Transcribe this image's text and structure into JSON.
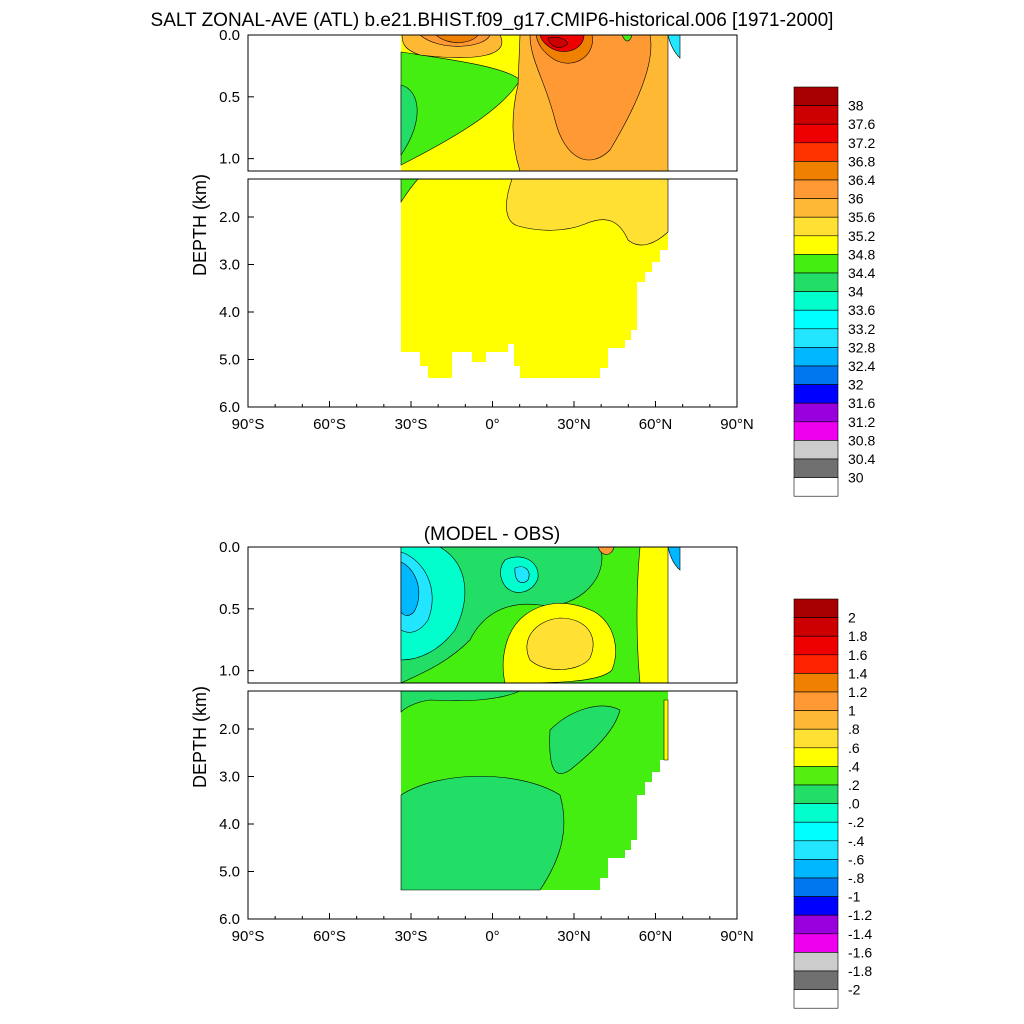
{
  "title": "SALT ZONAL-AVE (ATL) b.e21.BHIST.f09_g17.CMIP6-historical.006 [1971-2000]",
  "chart_data": [
    {
      "type": "heatmap",
      "title": "",
      "ylabel": "DEPTH (km)",
      "xlim": [
        -90,
        90
      ],
      "ylim": [
        6.0,
        0.0
      ],
      "x_ticks": [
        "90°S",
        "60°S",
        "30°S",
        "0°",
        "30°N",
        "60°N",
        "90°N"
      ],
      "y_ticks_upper": [
        "0.0",
        "0.5",
        "1.0"
      ],
      "y_ticks_lower": [
        "2.0",
        "3.0",
        "4.0",
        "5.0",
        "6.0"
      ],
      "colorbar": {
        "levels": [
          "38",
          "37.6",
          "37.2",
          "36.8",
          "36.4",
          "36",
          "35.6",
          "35.2",
          "34.8",
          "34.4",
          "34",
          "33.6",
          "33.2",
          "32.8",
          "32.4",
          "32",
          "31.6",
          "31.2",
          "30.8",
          "30.4",
          "30"
        ],
        "colors": [
          "#a80000",
          "#cc0000",
          "#ee0000",
          "#ff3300",
          "#f08000",
          "#ff9933",
          "#ffb833",
          "#ffe033",
          "#ffff00",
          "#44ee11",
          "#22dd66",
          "#00ffcc",
          "#00ffff",
          "#22e6ff",
          "#00b8ff",
          "#0077ee",
          "#0000ff",
          "#9900dd",
          "#ee00ee",
          "#cccccc",
          "#707070",
          "#ffffff"
        ]
      },
      "field_summary": {
        "ocean_lat_range": [
          -35,
          65
        ],
        "bottom_depth_km": 5.4,
        "surface_max": 37.6,
        "surface_max_lat": 25,
        "interior_value": 35.0,
        "southern_min": 34.6
      }
    },
    {
      "type": "heatmap",
      "title": "(MODEL - OBS)",
      "ylabel": "DEPTH (km)",
      "xlim": [
        -90,
        90
      ],
      "ylim": [
        6.0,
        0.0
      ],
      "x_ticks": [
        "90°S",
        "60°S",
        "30°S",
        "0°",
        "30°N",
        "60°N",
        "90°N"
      ],
      "y_ticks_upper": [
        "0.0",
        "0.5",
        "1.0"
      ],
      "y_ticks_lower": [
        "2.0",
        "3.0",
        "4.0",
        "5.0",
        "6.0"
      ],
      "colorbar": {
        "levels": [
          "2",
          "1.8",
          "1.6",
          "1.4",
          "1.2",
          "1",
          ".8",
          ".6",
          ".4",
          ".2",
          ".0",
          "-.2",
          "-.4",
          "-.6",
          "-.8",
          "-1",
          "-1.2",
          "-1.4",
          "-1.6",
          "-1.8",
          "-2"
        ],
        "colors": [
          "#a80000",
          "#cc0000",
          "#ee0000",
          "#ff2200",
          "#f08000",
          "#ff9933",
          "#ffb833",
          "#ffe033",
          "#ffff00",
          "#55ee11",
          "#22dd66",
          "#00ffcc",
          "#00ffff",
          "#22e6ff",
          "#00b8ff",
          "#0077ee",
          "#0000ff",
          "#9900dd",
          "#ee00ee",
          "#cccccc",
          "#707070",
          "#ffffff"
        ]
      },
      "field_summary": {
        "interior_bias": 0.2,
        "subtropical_max_bias": 0.7,
        "southern_surface_min_bias": -0.8,
        "deep_bias": 0.3
      }
    }
  ]
}
